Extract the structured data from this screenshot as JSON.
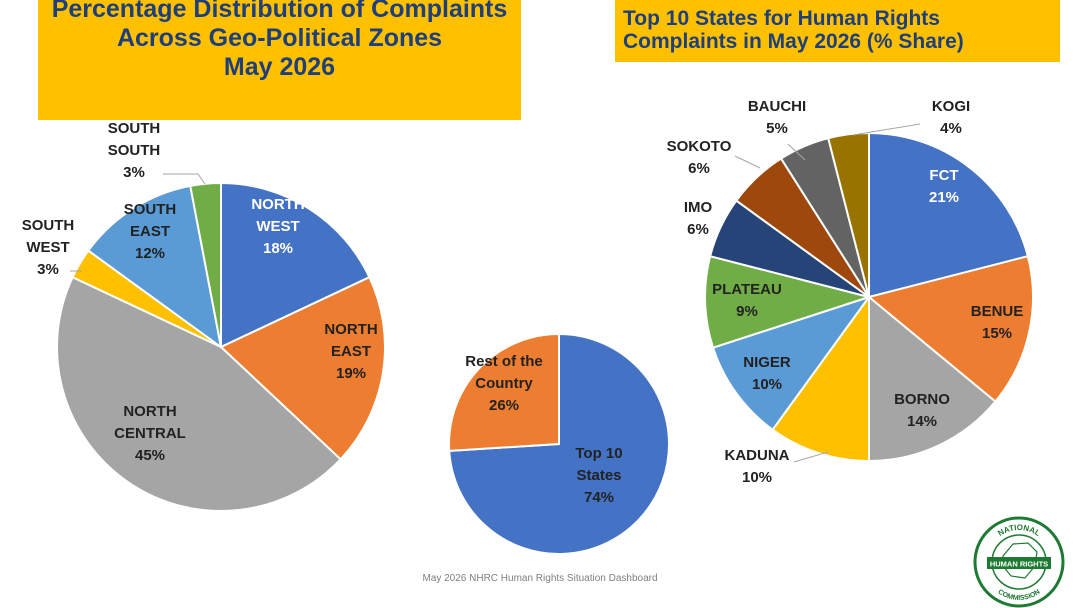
{
  "titles": {
    "left": [
      "Percentage Distribution of Complaints",
      "Across Geo-Political Zones",
      "May 2026"
    ],
    "right": [
      "Top 10 States for Human Rights",
      "Complaints in May 2026 (% Share)"
    ]
  },
  "footer": "May 2026 NHRC Human Rights Situation Dashboard",
  "logo": {
    "top_text": "NATIONAL",
    "band_text": "HUMAN RIGHTS",
    "bottom_text": "COMMISSION"
  },
  "colors": {
    "title_band": "#FFC000",
    "title_text": "#1F3F7A"
  },
  "chart_data": [
    {
      "type": "pie",
      "title": "Percentage Distribution of Complaints Across Geo-Political Zones May 2026",
      "slices": [
        {
          "lines": [
            "NORTH",
            "WEST"
          ],
          "value": 18,
          "color": "#4472C4"
        },
        {
          "lines": [
            "NORTH",
            "EAST"
          ],
          "value": 19,
          "color": "#ED7D31"
        },
        {
          "lines": [
            "NORTH",
            "CENTRAL"
          ],
          "value": 45,
          "color": "#A5A5A5"
        },
        {
          "lines": [
            "SOUTH",
            "WEST"
          ],
          "value": 3,
          "color": "#FFC000"
        },
        {
          "lines": [
            "SOUTH",
            "EAST"
          ],
          "value": 12,
          "color": "#5B9BD5"
        },
        {
          "lines": [
            "SOUTH",
            "SOUTH"
          ],
          "value": 3,
          "color": "#70AD47"
        }
      ]
    },
    {
      "type": "pie",
      "slices": [
        {
          "lines": [
            "Top 10",
            "States"
          ],
          "value": 74,
          "color": "#4472C4"
        },
        {
          "lines": [
            "Rest of the",
            "Country"
          ],
          "value": 26,
          "color": "#ED7D31"
        }
      ]
    },
    {
      "type": "pie",
      "title": "Top 10 States for Human Rights Complaints in May 2026 (% Share)",
      "slices": [
        {
          "lines": [
            "FCT"
          ],
          "value": 21,
          "color": "#4472C4"
        },
        {
          "lines": [
            "BENUE"
          ],
          "value": 15,
          "color": "#ED7D31"
        },
        {
          "lines": [
            "BORNO"
          ],
          "value": 14,
          "color": "#A5A5A5"
        },
        {
          "lines": [
            "KADUNA"
          ],
          "value": 10,
          "color": "#FFC000"
        },
        {
          "lines": [
            "NIGER"
          ],
          "value": 10,
          "color": "#5B9BD5"
        },
        {
          "lines": [
            "PLATEAU"
          ],
          "value": 9,
          "color": "#70AD47"
        },
        {
          "lines": [
            "IMO"
          ],
          "value": 6,
          "color": "#264478"
        },
        {
          "lines": [
            "SOKOTO"
          ],
          "value": 6,
          "color": "#9E480E"
        },
        {
          "lines": [
            "BAUCHI"
          ],
          "value": 5,
          "color": "#636363"
        },
        {
          "lines": [
            "KOGI"
          ],
          "value": 4,
          "color": "#997300"
        }
      ]
    }
  ]
}
